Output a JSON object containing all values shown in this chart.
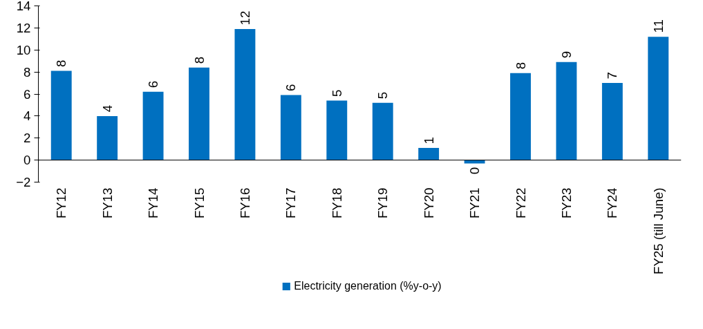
{
  "chart_data": {
    "type": "bar",
    "categories": [
      "FY12",
      "FY13",
      "FY14",
      "FY15",
      "FY16",
      "FY17",
      "FY18",
      "FY19",
      "FY20",
      "FY21",
      "FY22",
      "FY23",
      "FY24",
      "FY25 (till June)"
    ],
    "series": [
      {
        "name": "Electricity generation (%y-o-y)",
        "color": "#0070c0",
        "values": [
          8.1,
          4.0,
          6.2,
          8.4,
          11.9,
          5.9,
          5.4,
          5.2,
          1.1,
          -0.3,
          7.9,
          8.9,
          7.0,
          11.2
        ],
        "value_labels": [
          "8",
          "4",
          "6",
          "8",
          "12",
          "6",
          "5",
          "5",
          "1",
          "0",
          "8",
          "9",
          "7",
          "11"
        ]
      }
    ],
    "ylim": [
      -2,
      14
    ],
    "yticks": [
      -2,
      0,
      2,
      4,
      6,
      8,
      10,
      12,
      14
    ],
    "grid": false,
    "legend": "bottom"
  }
}
